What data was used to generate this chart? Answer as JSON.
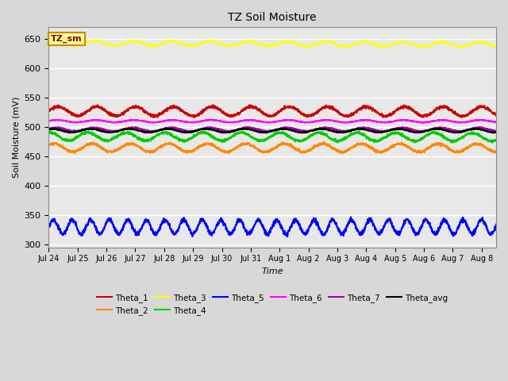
{
  "title": "TZ Soil Moisture",
  "xlabel": "Time",
  "ylabel": "Soil Moisture (mV)",
  "ylim": [
    295,
    670
  ],
  "yticks": [
    300,
    350,
    400,
    450,
    500,
    550,
    600,
    650
  ],
  "x_tick_labels": [
    "Jul 24",
    "Jul 25",
    "Jul 26",
    "Jul 27",
    "Jul 28",
    "Jul 29",
    "Jul 30",
    "Jul 31",
    "Aug 1",
    "Aug 2",
    "Aug 3",
    "Aug 4",
    "Aug 5",
    "Aug 6",
    "Aug 7",
    "Aug 8"
  ],
  "num_points": 2000,
  "total_days": 15.5,
  "series": [
    {
      "name": "Theta_1",
      "color": "#cc0000",
      "base": 527,
      "amp": 8,
      "freq": 0.75,
      "phase": 0.0,
      "trend": -0.001,
      "lw": 1.5
    },
    {
      "name": "Theta_2",
      "color": "#ff8800",
      "base": 465,
      "amp": 7,
      "freq": 0.75,
      "phase": 0.8,
      "trend": -0.001,
      "lw": 1.5
    },
    {
      "name": "Theta_3",
      "color": "#ffff00",
      "base": 643,
      "amp": 4,
      "freq": 0.75,
      "phase": 0.3,
      "trend": -0.005,
      "lw": 1.5
    },
    {
      "name": "Theta_4",
      "color": "#00cc00",
      "base": 484,
      "amp": 7,
      "freq": 0.75,
      "phase": 1.5,
      "trend": -0.002,
      "lw": 1.5
    },
    {
      "name": "Theta_5",
      "color": "#0000ff",
      "base": 330,
      "amp": 12,
      "freq": 1.55,
      "phase": 0.0,
      "trend": 0.0,
      "lw": 1.5
    },
    {
      "name": "Theta_6",
      "color": "#ff00ff",
      "base": 510,
      "amp": 2,
      "freq": 0.75,
      "phase": 0.2,
      "trend": 0.0,
      "lw": 1.5
    },
    {
      "name": "Theta_7",
      "color": "#aa00aa",
      "base": 496,
      "amp": 3,
      "freq": 0.75,
      "phase": 0.4,
      "trend": 0.0,
      "lw": 1.5
    },
    {
      "name": "Theta_avg",
      "color": "#000000",
      "base": 494,
      "amp": 3,
      "freq": 0.75,
      "phase": 1.0,
      "trend": 0.0,
      "lw": 1.5
    }
  ],
  "legend_label": "TZ_sm",
  "legend_box_facecolor": "#ffff99",
  "legend_box_edgecolor": "#cc8800",
  "fig_facecolor": "#d8d8d8",
  "plot_facecolor": "#e8e8e8",
  "grid_color": "#ffffff",
  "grid_linewidth": 1.0
}
